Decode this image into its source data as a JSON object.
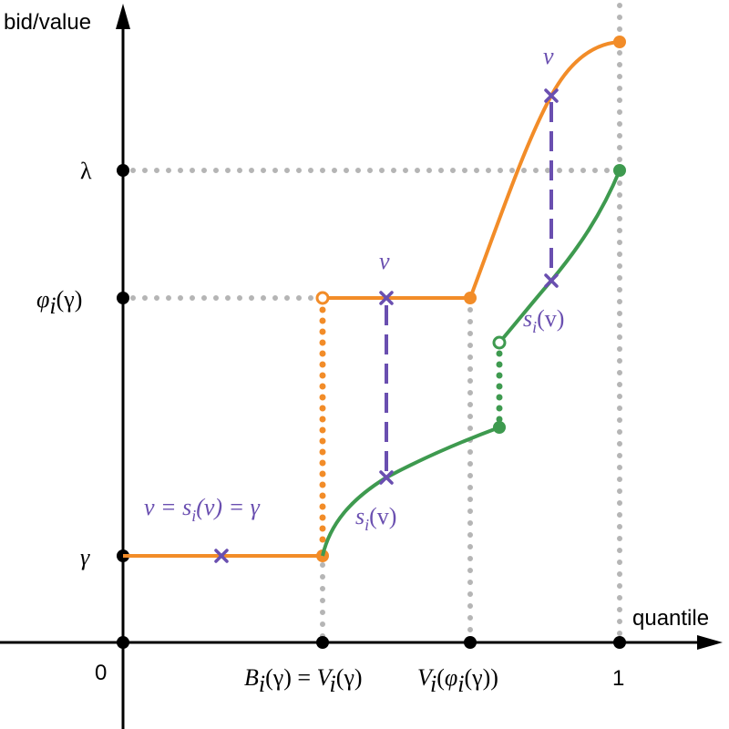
{
  "axes": {
    "y_title": "bid/value",
    "x_title": "quantile"
  },
  "y_ticks": {
    "lambda": "λ",
    "phi": "φ",
    "phi_sub": "i",
    "phi_arg": "(γ)",
    "gamma": "γ",
    "zero": "0"
  },
  "x_ticks": {
    "b_v": [
      "B",
      "i",
      "(γ) = ",
      "V",
      "i",
      "(γ)"
    ],
    "v_phi": [
      "V",
      "i",
      "(",
      "φ",
      "i",
      "(γ))"
    ],
    "one": "1"
  },
  "labels": {
    "v": "v",
    "s_i": "s",
    "s_i_sub": "i",
    "s_i_arg": "(v)",
    "equality": [
      "v = s",
      "i",
      "(v) = γ"
    ]
  },
  "colors": {
    "orange": "#f28c28",
    "green": "#3e9a4f",
    "purple": "#6a4fb0",
    "grid": "#b5b5b5"
  }
}
